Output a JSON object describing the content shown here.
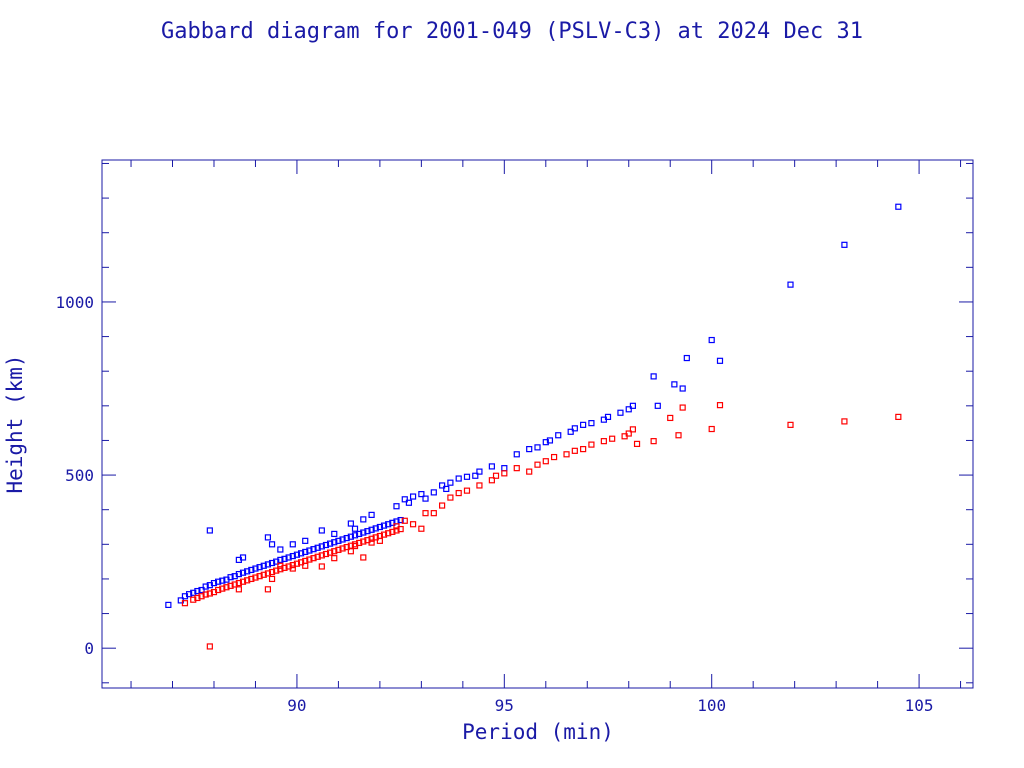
{
  "chart_data": {
    "type": "scatter",
    "title": "Gabbard diagram for 2001-049 (PSLV-C3) at 2024 Dec 31",
    "xlabel": "Period (min)",
    "ylabel": "Height (km)",
    "xlim": [
      85.3,
      106.3
    ],
    "ylim": [
      -115,
      1410
    ],
    "x_ticks": [
      90,
      95,
      100,
      105
    ],
    "x_tick_labels": [
      "90",
      "95",
      "100",
      "105"
    ],
    "y_ticks": [
      0,
      500,
      1000
    ],
    "y_tick_labels": [
      "0",
      "500",
      "1000"
    ],
    "x_minor_step": 1,
    "y_minor_step": 100,
    "grid": false,
    "legend": "none",
    "marker": "square",
    "colors": {
      "apogee": "#0000ff",
      "perigee": "#ff0000",
      "text": "#1a1aa6",
      "frame": "#1a1aa6"
    },
    "series": [
      {
        "values": [
          [
            86.9,
            125
          ],
          [
            87.2,
            138
          ],
          [
            87.3,
            150
          ],
          [
            87.4,
            156
          ],
          [
            87.5,
            160
          ],
          [
            87.6,
            165
          ],
          [
            87.7,
            168
          ],
          [
            87.8,
            178
          ],
          [
            87.9,
            182
          ],
          [
            88.0,
            188
          ],
          [
            88.1,
            192
          ],
          [
            88.2,
            195
          ],
          [
            88.3,
            198
          ],
          [
            88.4,
            205
          ],
          [
            88.5,
            208
          ],
          [
            88.6,
            214
          ],
          [
            88.7,
            218
          ],
          [
            88.8,
            222
          ],
          [
            88.9,
            226
          ],
          [
            89.0,
            230
          ],
          [
            89.1,
            234
          ],
          [
            89.2,
            238
          ],
          [
            89.3,
            242
          ],
          [
            89.4,
            246
          ],
          [
            89.5,
            250
          ],
          [
            89.6,
            255
          ],
          [
            89.7,
            258
          ],
          [
            89.8,
            262
          ],
          [
            89.9,
            266
          ],
          [
            90.0,
            270
          ],
          [
            90.1,
            274
          ],
          [
            90.2,
            278
          ],
          [
            90.3,
            282
          ],
          [
            90.4,
            286
          ],
          [
            90.5,
            290
          ],
          [
            90.6,
            294
          ],
          [
            90.7,
            298
          ],
          [
            90.8,
            302
          ],
          [
            90.9,
            306
          ],
          [
            91.0,
            310
          ],
          [
            91.1,
            314
          ],
          [
            91.2,
            318
          ],
          [
            91.3,
            322
          ],
          [
            91.4,
            326
          ],
          [
            91.5,
            330
          ],
          [
            91.6,
            334
          ],
          [
            91.7,
            338
          ],
          [
            91.8,
            342
          ],
          [
            91.9,
            346
          ],
          [
            92.0,
            350
          ],
          [
            92.1,
            354
          ],
          [
            92.2,
            358
          ],
          [
            92.3,
            362
          ],
          [
            92.4,
            366
          ],
          [
            92.5,
            370
          ],
          [
            87.9,
            340
          ],
          [
            88.6,
            255
          ],
          [
            88.7,
            262
          ],
          [
            89.3,
            320
          ],
          [
            89.4,
            300
          ],
          [
            89.6,
            285
          ],
          [
            89.9,
            300
          ],
          [
            90.2,
            310
          ],
          [
            90.6,
            340
          ],
          [
            90.9,
            330
          ],
          [
            91.3,
            360
          ],
          [
            91.4,
            345
          ],
          [
            91.6,
            372
          ],
          [
            91.8,
            385
          ],
          [
            92.4,
            410
          ],
          [
            92.6,
            430
          ],
          [
            92.7,
            420
          ],
          [
            92.8,
            438
          ],
          [
            93.0,
            445
          ],
          [
            93.1,
            432
          ],
          [
            93.3,
            450
          ],
          [
            93.5,
            470
          ],
          [
            93.6,
            460
          ],
          [
            93.7,
            478
          ],
          [
            93.9,
            490
          ],
          [
            94.1,
            495
          ],
          [
            94.3,
            498
          ],
          [
            94.4,
            510
          ],
          [
            94.7,
            525
          ],
          [
            95.0,
            520
          ],
          [
            95.3,
            560
          ],
          [
            95.6,
            575
          ],
          [
            95.8,
            580
          ],
          [
            96.0,
            595
          ],
          [
            96.1,
            600
          ],
          [
            96.3,
            615
          ],
          [
            96.6,
            625
          ],
          [
            96.7,
            635
          ],
          [
            96.9,
            645
          ],
          [
            97.1,
            650
          ],
          [
            97.4,
            660
          ],
          [
            97.5,
            668
          ],
          [
            97.8,
            680
          ],
          [
            98.0,
            690
          ],
          [
            98.1,
            700
          ],
          [
            98.6,
            785
          ],
          [
            98.7,
            700
          ],
          [
            99.1,
            762
          ],
          [
            99.3,
            750
          ],
          [
            99.4,
            838
          ],
          [
            100.0,
            890
          ],
          [
            100.2,
            830
          ],
          [
            101.9,
            1050
          ],
          [
            103.2,
            1165
          ],
          [
            104.5,
            1275
          ]
        ]
      },
      {
        "values": [
          [
            87.3,
            130
          ],
          [
            87.5,
            140
          ],
          [
            87.6,
            145
          ],
          [
            87.7,
            150
          ],
          [
            87.8,
            155
          ],
          [
            87.9,
            158
          ],
          [
            88.0,
            162
          ],
          [
            88.1,
            168
          ],
          [
            88.2,
            172
          ],
          [
            88.3,
            176
          ],
          [
            88.4,
            180
          ],
          [
            88.5,
            184
          ],
          [
            88.6,
            188
          ],
          [
            88.7,
            192
          ],
          [
            88.8,
            196
          ],
          [
            88.9,
            200
          ],
          [
            89.0,
            204
          ],
          [
            89.1,
            208
          ],
          [
            89.2,
            212
          ],
          [
            89.3,
            216
          ],
          [
            89.4,
            220
          ],
          [
            89.5,
            224
          ],
          [
            89.6,
            228
          ],
          [
            89.7,
            232
          ],
          [
            89.8,
            236
          ],
          [
            89.9,
            240
          ],
          [
            90.0,
            244
          ],
          [
            90.1,
            248
          ],
          [
            90.2,
            252
          ],
          [
            90.3,
            256
          ],
          [
            90.4,
            260
          ],
          [
            90.5,
            264
          ],
          [
            90.6,
            268
          ],
          [
            90.7,
            272
          ],
          [
            90.8,
            276
          ],
          [
            90.9,
            280
          ],
          [
            91.0,
            284
          ],
          [
            91.1,
            288
          ],
          [
            91.2,
            292
          ],
          [
            91.3,
            296
          ],
          [
            91.4,
            300
          ],
          [
            91.5,
            304
          ],
          [
            91.6,
            308
          ],
          [
            91.7,
            312
          ],
          [
            91.8,
            316
          ],
          [
            91.9,
            320
          ],
          [
            92.0,
            324
          ],
          [
            92.1,
            328
          ],
          [
            92.2,
            332
          ],
          [
            92.3,
            336
          ],
          [
            92.4,
            340
          ],
          [
            92.5,
            344
          ],
          [
            87.9,
            5
          ],
          [
            88.6,
            170
          ],
          [
            89.3,
            170
          ],
          [
            89.4,
            200
          ],
          [
            89.6,
            238
          ],
          [
            89.9,
            230
          ],
          [
            90.2,
            238
          ],
          [
            90.6,
            236
          ],
          [
            90.9,
            260
          ],
          [
            91.3,
            280
          ],
          [
            91.4,
            295
          ],
          [
            91.6,
            262
          ],
          [
            91.8,
            305
          ],
          [
            92.0,
            310
          ],
          [
            92.4,
            352
          ],
          [
            92.6,
            368
          ],
          [
            92.8,
            358
          ],
          [
            93.0,
            345
          ],
          [
            93.1,
            390
          ],
          [
            93.3,
            390
          ],
          [
            93.5,
            412
          ],
          [
            93.7,
            435
          ],
          [
            93.9,
            448
          ],
          [
            94.1,
            455
          ],
          [
            94.4,
            470
          ],
          [
            94.7,
            485
          ],
          [
            94.8,
            498
          ],
          [
            95.0,
            505
          ],
          [
            95.3,
            520
          ],
          [
            95.6,
            510
          ],
          [
            95.8,
            530
          ],
          [
            96.0,
            540
          ],
          [
            96.2,
            552
          ],
          [
            96.5,
            560
          ],
          [
            96.7,
            570
          ],
          [
            96.9,
            575
          ],
          [
            97.1,
            588
          ],
          [
            97.4,
            598
          ],
          [
            97.6,
            605
          ],
          [
            97.9,
            612
          ],
          [
            98.0,
            620
          ],
          [
            98.1,
            632
          ],
          [
            98.2,
            590
          ],
          [
            98.6,
            598
          ],
          [
            99.0,
            665
          ],
          [
            99.2,
            615
          ],
          [
            99.3,
            695
          ],
          [
            100.0,
            633
          ],
          [
            100.2,
            702
          ],
          [
            101.9,
            645
          ],
          [
            103.2,
            655
          ],
          [
            104.5,
            668
          ]
        ]
      }
    ]
  }
}
